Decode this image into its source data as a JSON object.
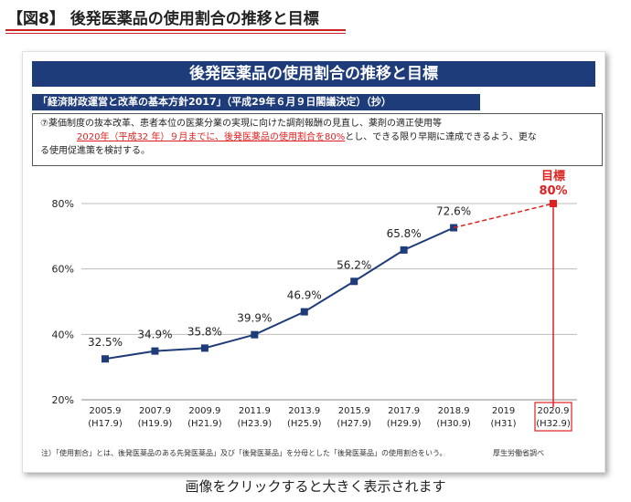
{
  "page": {
    "heading": "【図8】 後発医薬品の使用割合の推移と目標",
    "caption": "画像をクリックすると大きく表示されます"
  },
  "panel": {
    "title": "後発医薬品の使用割合の推移と目標",
    "policy_title": "「経済財政運営と改革の基本方針2017」（平成29年６月９日閣議決定）（抄）",
    "policy_text_1": "⑦薬価制度の抜本改革、患者本位の医薬分業の実現に向けた調剤報酬の見直し、薬剤の適正使用等",
    "policy_text_highlight": "2020年（平成32 年）９月までに、後発医薬品の使用割合を80%",
    "policy_text_2": "とし、できる限り早期に達成できるよう、更な",
    "policy_text_3": "る使用促進策を検討する。",
    "footnote": "注）「使用割合」とは、後発医薬品のある先発医薬品」及び「後発医薬品」を分母とした「後発医薬品」の使用割合をいう。",
    "source": "厚生労働省調べ"
  },
  "colors": {
    "navy": "#1f3c7a",
    "target_red": "#e02020"
  },
  "chart_data": {
    "type": "line",
    "title": "後発医薬品の使用割合の推移と目標",
    "xlabel": "",
    "ylabel": "",
    "ylim": [
      20,
      80
    ],
    "yticks": [
      "20%",
      "40%",
      "60%",
      "80%"
    ],
    "grid": true,
    "categories": [
      {
        "top": "2005.9",
        "bottom": "(H17.9)"
      },
      {
        "top": "2007.9",
        "bottom": "(H19.9)"
      },
      {
        "top": "2009.9",
        "bottom": "(H21.9)"
      },
      {
        "top": "2011.9",
        "bottom": "(H23.9)"
      },
      {
        "top": "2013.9",
        "bottom": "(H25.9)"
      },
      {
        "top": "2015.9",
        "bottom": "(H27.9)"
      },
      {
        "top": "2017.9",
        "bottom": "(H29.9)"
      },
      {
        "top": "2018.9",
        "bottom": "(H30.9)"
      },
      {
        "top": "2019",
        "bottom": "(H31)"
      },
      {
        "top": "2020.9",
        "bottom": "(H32.9)"
      }
    ],
    "series": [
      {
        "values": [
          32.5,
          34.9,
          35.8,
          39.9,
          46.9,
          56.2,
          65.8,
          72.6,
          null,
          null
        ],
        "labels": [
          "32.5%",
          "34.9%",
          "35.8%",
          "39.9%",
          "46.9%",
          "56.2%",
          "65.8%",
          "72.6%",
          "",
          ""
        ]
      }
    ],
    "target": {
      "label": "目標",
      "value_label": "80%",
      "value": 80,
      "category_index": 9
    }
  }
}
